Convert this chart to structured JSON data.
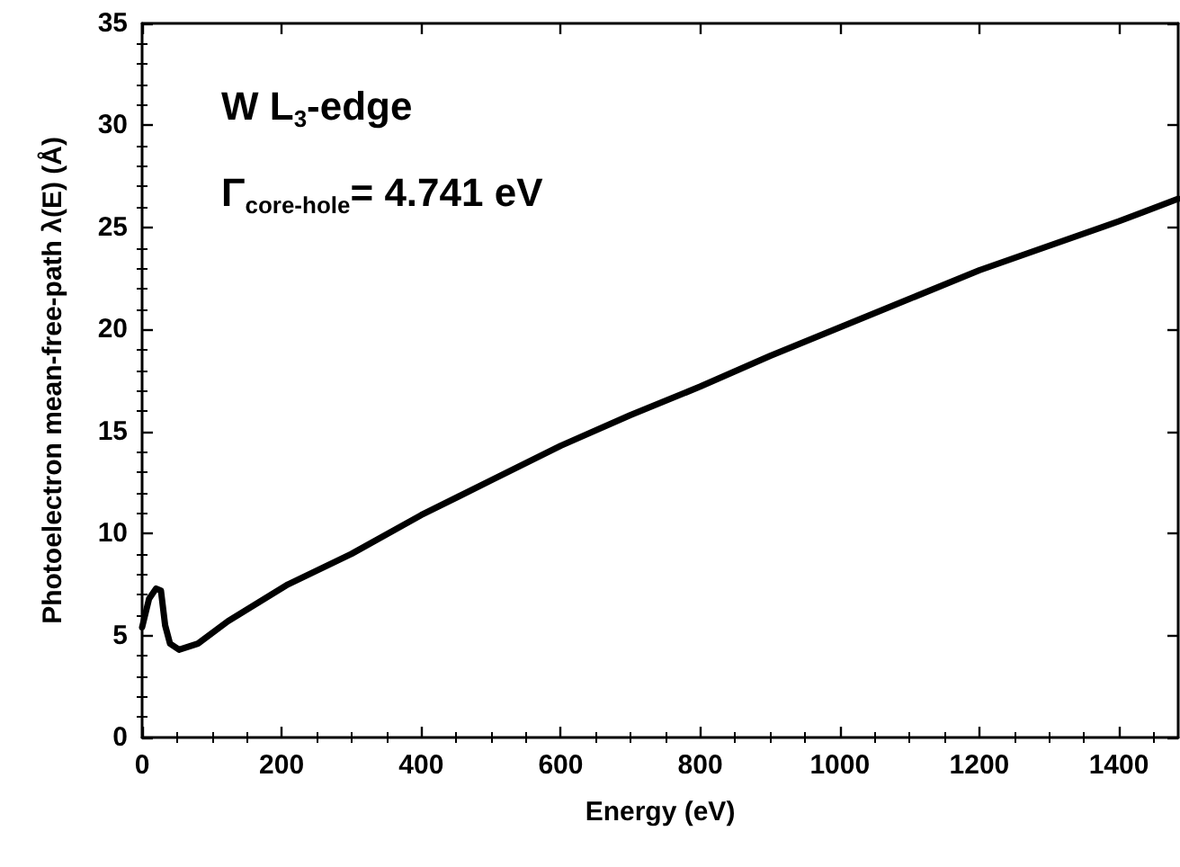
{
  "chart_data": {
    "type": "line",
    "xlabel": "Energy (eV)",
    "ylabel": "Photoelectron mean-free-path λ(E) (Å)",
    "annotations": [
      "W L$_{3}$-edge",
      "Γ$_{core-hole}$= 4.741 eV"
    ],
    "series": [
      {
        "color": "#000000",
        "x": [
          0,
          10,
          20,
          27,
          33,
          40,
          53,
          80,
          123,
          209,
          300,
          400,
          500,
          600,
          700,
          800,
          900,
          1000,
          1100,
          1200,
          1300,
          1400,
          1485
        ],
        "values": [
          5.4,
          6.8,
          7.3,
          7.2,
          5.5,
          4.6,
          4.3,
          4.6,
          5.7,
          7.5,
          9.0,
          10.9,
          12.6,
          14.3,
          15.8,
          17.2,
          18.7,
          20.1,
          21.5,
          22.9,
          24.1,
          25.3,
          26.4
        ]
      }
    ],
    "xlim": [
      0,
      1485
    ],
    "ylim": [
      0,
      35
    ],
    "xticks": [
      0,
      200,
      400,
      600,
      800,
      1000,
      1200,
      1400
    ],
    "yticks": [
      0,
      5,
      10,
      15,
      20,
      25,
      30,
      35
    ],
    "marker": "none",
    "line_style": "solid"
  }
}
